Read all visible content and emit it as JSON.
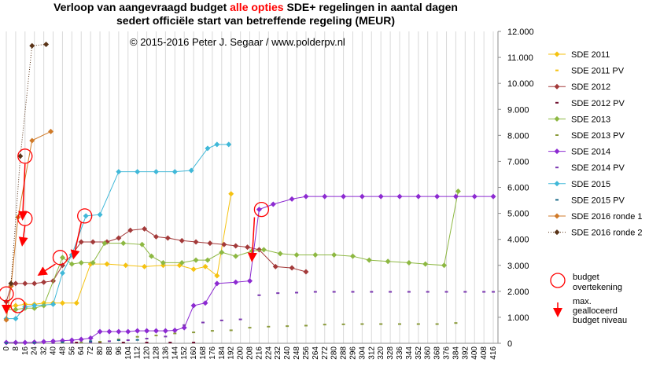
{
  "title": {
    "line1_before": "Verloop van aangevraagd budget ",
    "line1_highlight": "alle opties",
    "line1_after": " SDE+ regelingen  in aantal dagen",
    "line2": "sedert officiële start van betreffende regeling (MEUR)"
  },
  "copyright": "© 2015-2016  Peter J. Segaar / www.polderpv.nl",
  "annotation_legend": {
    "circle_label_1": "budget",
    "circle_label_2": "overtekening",
    "arrow_label_1": "max.",
    "arrow_label_2": "gealloceerd",
    "arrow_label_3": "budget niveau"
  },
  "chart_data": {
    "type": "line",
    "x_tick_labels": [
      "0",
      "8",
      "16",
      "24",
      "32",
      "40",
      "48",
      "56",
      "64",
      "72",
      "80",
      "88",
      "96",
      "104",
      "112",
      "120",
      "128",
      "136",
      "144",
      "152",
      "160",
      "168",
      "176",
      "184",
      "192",
      "200",
      "208",
      "216",
      "224",
      "232",
      "240",
      "248",
      "256",
      "264",
      "272",
      "280",
      "288",
      "296",
      "304",
      "312",
      "320",
      "328",
      "336",
      "344",
      "352",
      "360",
      "368",
      "376",
      "384",
      "392",
      "400",
      "408",
      "416"
    ],
    "xlim": [
      0,
      420
    ],
    "ylim": [
      0,
      12000
    ],
    "y_ticks": [
      0,
      1000,
      2000,
      3000,
      4000,
      5000,
      6000,
      7000,
      8000,
      9000,
      10000,
      11000,
      12000
    ],
    "y_tick_labels": [
      "0",
      "1.000",
      "2.000",
      "3.000",
      "4.000",
      "5.000",
      "6.000",
      "7.000",
      "8.000",
      "9.000",
      "10.000",
      "11.000",
      "12.000"
    ],
    "y_axis_side": "right",
    "grid": "vertical",
    "legend_position": "right",
    "series": [
      {
        "name": "SDE 2011",
        "color": "#f5c211",
        "style": "line",
        "marker": "diamond",
        "points": [
          [
            0,
            1400
          ],
          [
            2,
            1400
          ],
          [
            8,
            1450
          ],
          [
            16,
            1500
          ],
          [
            24,
            1500
          ],
          [
            32,
            1550
          ],
          [
            40,
            1550
          ],
          [
            48,
            1550
          ],
          [
            60,
            1550
          ],
          [
            72,
            3050
          ],
          [
            86,
            3050
          ],
          [
            102,
            3000
          ],
          [
            118,
            2950
          ],
          [
            134,
            3000
          ],
          [
            148,
            3000
          ],
          [
            160,
            2850
          ],
          [
            170,
            2950
          ],
          [
            180,
            2600
          ],
          [
            192,
            5750
          ]
        ]
      },
      {
        "name": "SDE 2011 PV",
        "color": "#f5c211",
        "style": "dash",
        "points": [
          [
            0,
            30
          ],
          [
            8,
            30
          ],
          [
            16,
            30
          ],
          [
            24,
            30
          ],
          [
            32,
            30
          ],
          [
            40,
            30
          ],
          [
            48,
            30
          ],
          [
            56,
            30
          ]
        ]
      },
      {
        "name": "SDE 2012",
        "color": "#a33a3a",
        "style": "line",
        "marker": "diamond",
        "points": [
          [
            0,
            1600
          ],
          [
            4,
            2200
          ],
          [
            8,
            2300
          ],
          [
            16,
            2300
          ],
          [
            24,
            2300
          ],
          [
            32,
            2350
          ],
          [
            40,
            2400
          ],
          [
            48,
            3000
          ],
          [
            56,
            3400
          ],
          [
            64,
            3900
          ],
          [
            74,
            3900
          ],
          [
            86,
            3900
          ],
          [
            96,
            4050
          ],
          [
            106,
            4350
          ],
          [
            118,
            4400
          ],
          [
            128,
            4100
          ],
          [
            138,
            4050
          ],
          [
            150,
            3950
          ],
          [
            162,
            3900
          ],
          [
            174,
            3850
          ],
          [
            186,
            3800
          ],
          [
            196,
            3750
          ],
          [
            206,
            3700
          ],
          [
            216,
            3600
          ],
          [
            230,
            2950
          ],
          [
            244,
            2900
          ],
          [
            256,
            2750
          ]
        ]
      },
      {
        "name": "SDE 2012 PV",
        "color": "#701030",
        "style": "dash",
        "points": [
          [
            60,
            30
          ],
          [
            80,
            30
          ],
          [
            100,
            30
          ],
          [
            120,
            30
          ],
          [
            140,
            30
          ],
          [
            160,
            30
          ]
        ]
      },
      {
        "name": "SDE 2013",
        "color": "#8db842",
        "style": "line",
        "marker": "diamond",
        "points": [
          [
            0,
            1300
          ],
          [
            8,
            1300
          ],
          [
            16,
            1350
          ],
          [
            24,
            1350
          ],
          [
            32,
            1450
          ],
          [
            48,
            3300
          ],
          [
            56,
            3050
          ],
          [
            64,
            3100
          ],
          [
            74,
            3100
          ],
          [
            84,
            3850
          ],
          [
            100,
            3850
          ],
          [
            116,
            3800
          ],
          [
            124,
            3350
          ],
          [
            134,
            3100
          ],
          [
            150,
            3100
          ],
          [
            162,
            3200
          ],
          [
            172,
            3200
          ],
          [
            184,
            3500
          ],
          [
            196,
            3350
          ],
          [
            210,
            3550
          ],
          [
            220,
            3600
          ],
          [
            234,
            3450
          ],
          [
            248,
            3400
          ],
          [
            264,
            3400
          ],
          [
            280,
            3400
          ],
          [
            296,
            3350
          ],
          [
            310,
            3200
          ],
          [
            326,
            3150
          ],
          [
            344,
            3100
          ],
          [
            358,
            3050
          ],
          [
            374,
            3000
          ],
          [
            386,
            5850
          ]
        ]
      },
      {
        "name": "SDE 2013 PV",
        "color": "#8a9a3a",
        "style": "dash",
        "points": [
          [
            48,
            20
          ],
          [
            64,
            40
          ],
          [
            80,
            60
          ],
          [
            96,
            150
          ],
          [
            112,
            250
          ],
          [
            128,
            300
          ],
          [
            144,
            380
          ],
          [
            160,
            420
          ],
          [
            176,
            480
          ],
          [
            192,
            500
          ],
          [
            208,
            600
          ],
          [
            224,
            640
          ],
          [
            240,
            660
          ],
          [
            256,
            680
          ],
          [
            272,
            720
          ],
          [
            288,
            730
          ],
          [
            304,
            740
          ],
          [
            320,
            740
          ],
          [
            336,
            740
          ],
          [
            352,
            740
          ],
          [
            368,
            740
          ],
          [
            384,
            780
          ]
        ]
      },
      {
        "name": "SDE 2014",
        "color": "#8c2ad1",
        "style": "line",
        "marker": "diamond",
        "points": [
          [
            0,
            30
          ],
          [
            8,
            30
          ],
          [
            16,
            30
          ],
          [
            24,
            40
          ],
          [
            32,
            60
          ],
          [
            40,
            80
          ],
          [
            48,
            100
          ],
          [
            56,
            120
          ],
          [
            64,
            150
          ],
          [
            72,
            200
          ],
          [
            80,
            450
          ],
          [
            88,
            450
          ],
          [
            96,
            450
          ],
          [
            104,
            450
          ],
          [
            112,
            480
          ],
          [
            120,
            480
          ],
          [
            128,
            480
          ],
          [
            136,
            480
          ],
          [
            144,
            500
          ],
          [
            152,
            600
          ],
          [
            160,
            1450
          ],
          [
            170,
            1550
          ],
          [
            180,
            2300
          ],
          [
            196,
            2350
          ],
          [
            208,
            2400
          ],
          [
            216,
            5150
          ],
          [
            228,
            5350
          ],
          [
            244,
            5550
          ],
          [
            256,
            5650
          ],
          [
            272,
            5650
          ],
          [
            288,
            5650
          ],
          [
            304,
            5650
          ],
          [
            320,
            5650
          ],
          [
            336,
            5650
          ],
          [
            352,
            5650
          ],
          [
            368,
            5650
          ],
          [
            384,
            5650
          ],
          [
            400,
            5650
          ],
          [
            416,
            5650
          ]
        ]
      },
      {
        "name": "SDE 2014 PV",
        "color": "#7a36b0",
        "style": "dash",
        "points": [
          [
            8,
            10
          ],
          [
            24,
            10
          ],
          [
            40,
            10
          ],
          [
            56,
            20
          ],
          [
            72,
            40
          ],
          [
            88,
            80
          ],
          [
            104,
            120
          ],
          [
            120,
            180
          ],
          [
            136,
            260
          ],
          [
            152,
            700
          ],
          [
            168,
            800
          ],
          [
            184,
            880
          ],
          [
            200,
            920
          ],
          [
            216,
            1850
          ],
          [
            232,
            1930
          ],
          [
            248,
            1950
          ],
          [
            264,
            1980
          ],
          [
            280,
            1980
          ],
          [
            296,
            1980
          ],
          [
            312,
            1980
          ],
          [
            328,
            1980
          ],
          [
            344,
            1980
          ],
          [
            360,
            1980
          ],
          [
            376,
            1980
          ],
          [
            392,
            1980
          ],
          [
            408,
            1980
          ],
          [
            416,
            1980
          ]
        ]
      },
      {
        "name": "SDE 2015",
        "color": "#40b8d8",
        "style": "line",
        "marker": "diamond",
        "points": [
          [
            0,
            950
          ],
          [
            8,
            950
          ],
          [
            16,
            1400
          ],
          [
            24,
            1450
          ],
          [
            40,
            1500
          ],
          [
            48,
            2700
          ],
          [
            56,
            3400
          ],
          [
            68,
            4900
          ],
          [
            80,
            4950
          ],
          [
            96,
            6600
          ],
          [
            112,
            6600
          ],
          [
            128,
            6600
          ],
          [
            144,
            6600
          ],
          [
            158,
            6650
          ],
          [
            172,
            7500
          ],
          [
            180,
            7650
          ],
          [
            190,
            7650
          ]
        ]
      },
      {
        "name": "SDE 2015 PV",
        "color": "#1a6a8a",
        "style": "dash",
        "points": [
          [
            0,
            10
          ],
          [
            24,
            20
          ],
          [
            48,
            40
          ],
          [
            72,
            80
          ],
          [
            96,
            120
          ],
          [
            112,
            130
          ]
        ]
      },
      {
        "name": "SDE 2016 ronde 1",
        "color": "#d07a28",
        "style": "line",
        "marker": "diamond",
        "points": [
          [
            0,
            900
          ],
          [
            4,
            2200
          ],
          [
            10,
            4850
          ],
          [
            22,
            7800
          ],
          [
            38,
            8150
          ]
        ]
      },
      {
        "name": "SDE 2016 ronde 2",
        "color": "#5a3418",
        "style": "dotted",
        "marker": "diamond",
        "points": [
          [
            4,
            2300
          ],
          [
            12,
            7200
          ],
          [
            22,
            11450
          ],
          [
            34,
            11500
          ]
        ]
      }
    ],
    "annotations": {
      "circles": [
        [
          0,
          1900
        ],
        [
          10,
          1450
        ],
        [
          16,
          7200
        ],
        [
          16,
          4800
        ],
        [
          46,
          3300
        ],
        [
          67,
          4900
        ],
        [
          218,
          5150
        ]
      ],
      "arrows": [
        [
          [
            16,
            6900
          ],
          [
            14,
            4900
          ]
        ],
        [
          [
            16,
            4550
          ],
          [
            14,
            3900
          ]
        ],
        [
          [
            0,
            1600
          ],
          [
            0,
            1300
          ]
        ],
        [
          [
            42,
            3050
          ],
          [
            30,
            2700
          ]
        ],
        [
          [
            64,
            4650
          ],
          [
            58,
            3400
          ]
        ],
        [
          [
            212,
            4850
          ],
          [
            210,
            3300
          ]
        ]
      ]
    }
  }
}
